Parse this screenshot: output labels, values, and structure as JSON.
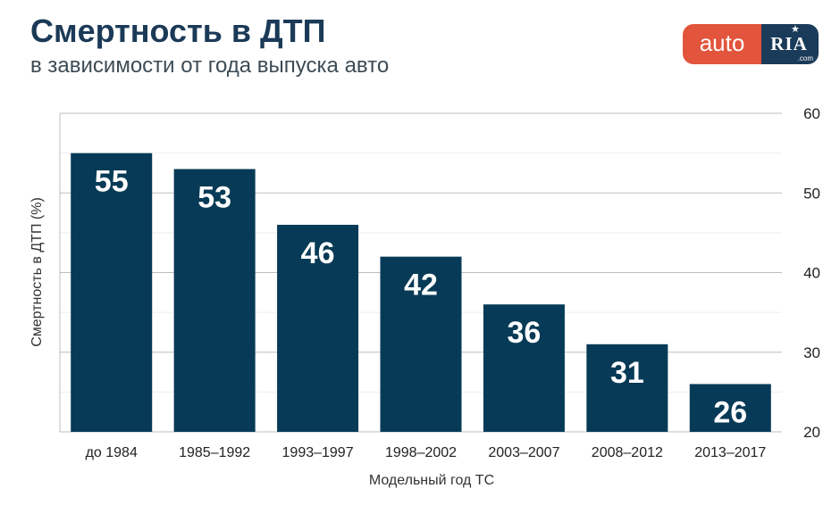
{
  "header": {
    "title": "Смертность в ДТП",
    "subtitle": "в зависимости от года выпуска авто"
  },
  "logo": {
    "auto": "auto",
    "ria": "RIA",
    "com": ".com",
    "icon": "star-icon",
    "colors": {
      "auto_bg": "#e2543b",
      "ria_bg": "#1a3b59"
    }
  },
  "colors": {
    "bar": "#073a56",
    "bar_label": "#ffffff",
    "title": "#1b3a57",
    "axis_text": "#222222",
    "grid_major": "#bdbdbd",
    "grid_minor": "#eeeeee"
  },
  "chart_data": {
    "type": "bar",
    "categories": [
      "до 1984",
      "1985–1992",
      "1993–1997",
      "1998–2002",
      "2003–2007",
      "2008–2012",
      "2013–2017"
    ],
    "values": [
      55,
      53,
      46,
      42,
      36,
      31,
      26
    ],
    "data_labels": [
      "55",
      "53",
      "46",
      "42",
      "36",
      "31",
      "26"
    ],
    "ylim": [
      20,
      60
    ],
    "yticks": [
      20,
      30,
      40,
      50,
      60
    ],
    "ytick_labels": [
      "20",
      "30",
      "40",
      "50",
      "60"
    ],
    "yaxis_side": "right",
    "xlabel": "Модельный год ТС",
    "ylabel": "Смертность в ДТП (%)",
    "grid": true,
    "legend": "none"
  }
}
